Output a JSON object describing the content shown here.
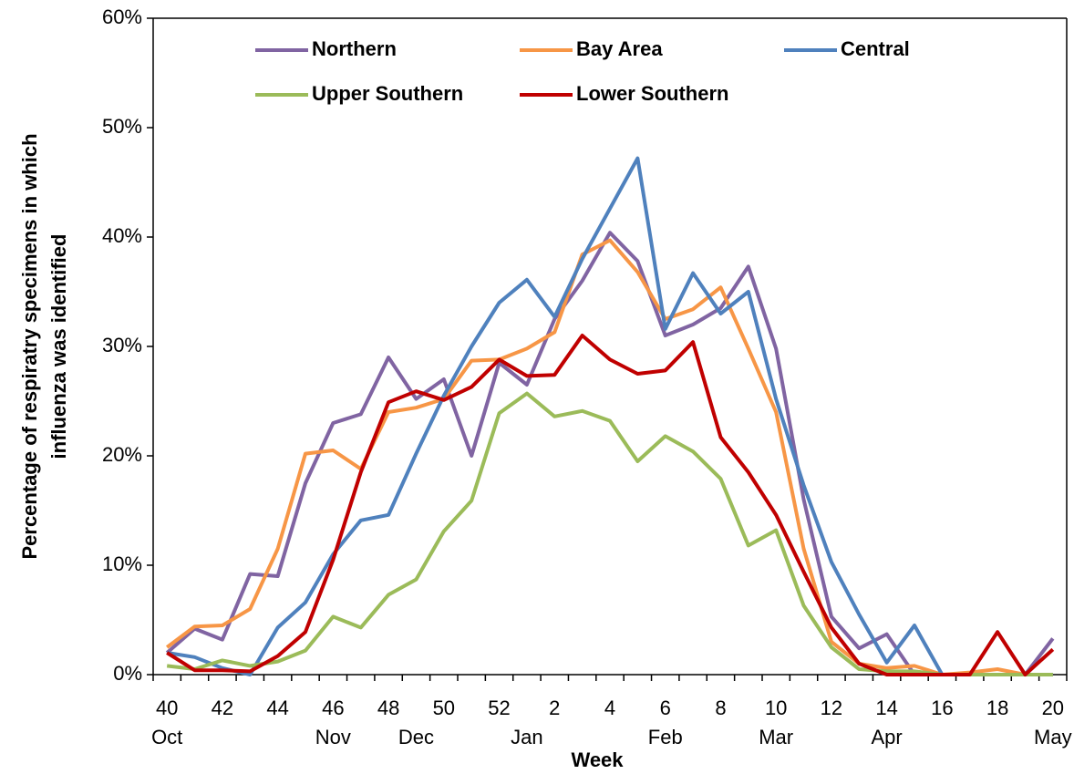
{
  "chart_data": {
    "type": "line",
    "x_label": "Week",
    "y_label": [
      "Percentage of respiratry specimens in which",
      "influenza was identified"
    ],
    "categories": [
      "40",
      null,
      "42",
      null,
      "44",
      null,
      "46",
      null,
      "48",
      null,
      "50",
      null,
      "52",
      null,
      "2",
      null,
      "4",
      null,
      "6",
      null,
      "8",
      null,
      "10",
      null,
      "12",
      null,
      "14",
      null,
      "16",
      null,
      "18",
      null,
      "20"
    ],
    "month_labels": [
      "Oct",
      null,
      null,
      null,
      null,
      null,
      "Nov",
      null,
      null,
      "Dec",
      null,
      null,
      null,
      "Jan",
      null,
      null,
      null,
      null,
      "Feb",
      null,
      null,
      null,
      "Mar",
      null,
      null,
      null,
      "Apr",
      null,
      null,
      null,
      null,
      null,
      "May"
    ],
    "ylim": [
      0,
      60
    ],
    "yticks": [
      {
        "value": 0,
        "label": "0%"
      },
      {
        "value": 10,
        "label": "10%"
      },
      {
        "value": 20,
        "label": "20%"
      },
      {
        "value": 30,
        "label": "30%"
      },
      {
        "value": 40,
        "label": "40%"
      },
      {
        "value": 50,
        "label": "50%"
      },
      {
        "value": 60,
        "label": "60%"
      }
    ],
    "grid": false,
    "legend": "top",
    "series": [
      {
        "name": "Northern",
        "color": "#8064a2",
        "values": [
          2.0,
          4.2,
          3.2,
          9.2,
          9.0,
          17.5,
          23,
          23.8,
          29,
          25.2,
          27,
          20,
          28.5,
          26.5,
          32.5,
          36,
          40.4,
          37.8,
          31,
          32,
          33.5,
          37.3,
          29.8,
          16,
          5.3,
          2.4,
          3.7,
          0,
          0,
          0,
          0,
          0,
          3.3
        ]
      },
      {
        "name": "Bay Area",
        "color": "#f79646",
        "values": [
          2.5,
          4.4,
          4.5,
          6,
          11.5,
          20.2,
          20.5,
          18.8,
          24,
          24.4,
          25.2,
          28.7,
          28.8,
          29.8,
          31.3,
          38.4,
          39.7,
          36.8,
          32.5,
          33.4,
          35.4,
          29.8,
          24,
          11.5,
          3,
          1,
          0.6,
          0.8,
          0,
          0.2,
          0.5,
          0,
          0
        ]
      },
      {
        "name": "Central",
        "color": "#4f81bd",
        "values": [
          2,
          1.6,
          0.6,
          0,
          4.3,
          6.6,
          11,
          14.1,
          14.6,
          20.2,
          25.5,
          30,
          34,
          36.1,
          32.7,
          38,
          42.6,
          47.2,
          31.6,
          36.7,
          33,
          35,
          25.2,
          17.3,
          10.3,
          5.5,
          1.1,
          4.5,
          0,
          0,
          0,
          0,
          0
        ]
      },
      {
        "name": "Upper Southern",
        "color": "#9bbb59",
        "values": [
          0.8,
          0.5,
          1.3,
          0.8,
          1.2,
          2.2,
          5.3,
          4.3,
          7.3,
          8.7,
          13.1,
          15.9,
          23.9,
          25.7,
          23.6,
          24.1,
          23.2,
          19.5,
          21.8,
          20.4,
          17.9,
          11.8,
          13.2,
          6.3,
          2.5,
          0.5,
          0.3,
          0.3,
          0,
          0,
          0,
          0,
          0
        ]
      },
      {
        "name": "Lower Southern",
        "color": "#c00000",
        "values": [
          2,
          0.4,
          0.4,
          0.3,
          1.7,
          3.9,
          10.5,
          18.5,
          24.9,
          25.9,
          25.1,
          26.3,
          28.8,
          27.3,
          27.4,
          31,
          28.8,
          27.5,
          27.8,
          30.4,
          21.7,
          18.5,
          14.6,
          9.4,
          4.3,
          1,
          0,
          0,
          0,
          0,
          3.9,
          0,
          2.3
        ]
      }
    ]
  }
}
